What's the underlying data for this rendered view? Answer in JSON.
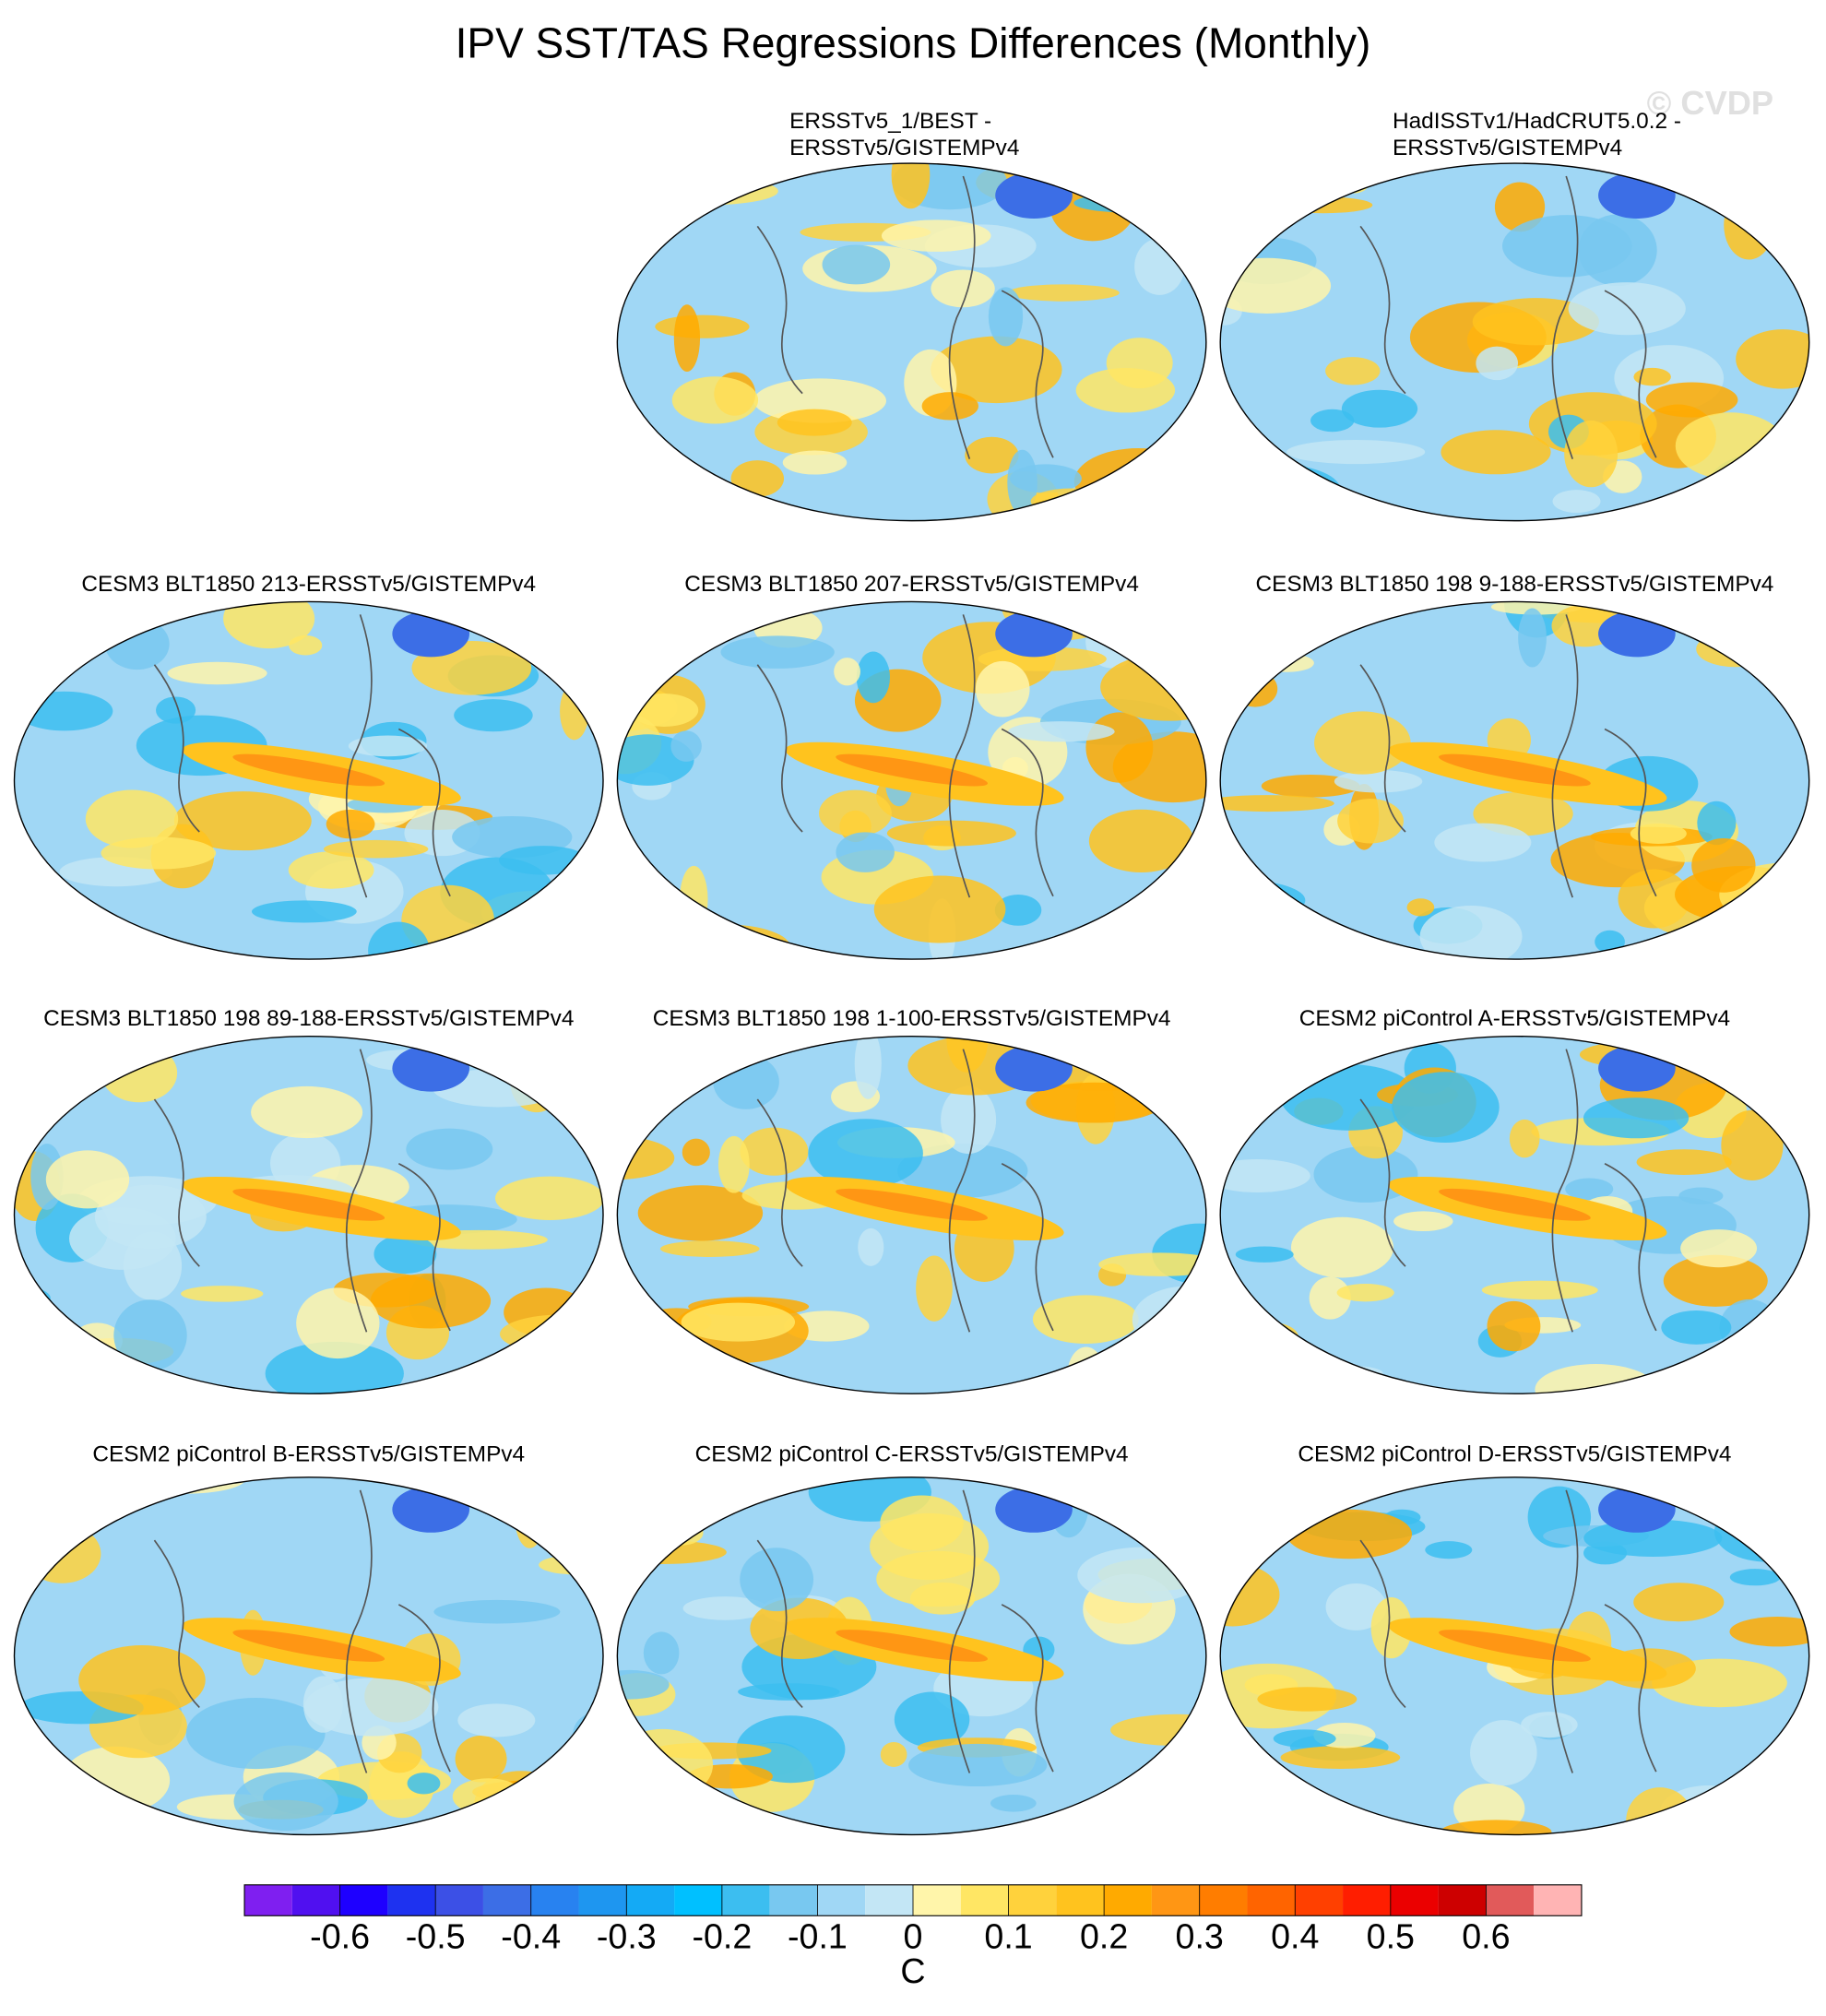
{
  "chart_data": {
    "type": "map-panels",
    "title": "IPV SST/TAS Regressions Differences (Monthly)",
    "watermark": "© CVDP",
    "panels": [
      {
        "title": [
          "ERSSTv5_1/BEST -",
          "ERSSTv5/GISTEMPv4"
        ]
      },
      {
        "title": [
          "HadISSTv1/HadCRUT5.0.2 -",
          "ERSSTv5/GISTEMPv4"
        ]
      },
      {
        "title": [
          "CESM3 BLT1850 213-ERSSTv5/GISTEMPv4"
        ]
      },
      {
        "title": [
          "CESM3 BLT1850 207-ERSSTv5/GISTEMPv4"
        ]
      },
      {
        "title": [
          "CESM3 BLT1850 198 9-188-ERSSTv5/GISTEMPv4"
        ]
      },
      {
        "title": [
          "CESM3 BLT1850 198 89-188-ERSSTv5/GISTEMPv4"
        ]
      },
      {
        "title": [
          "CESM3 BLT1850 198 1-100-ERSSTv5/GISTEMPv4"
        ]
      },
      {
        "title": [
          "CESM2 piControl A-ERSSTv5/GISTEMPv4"
        ]
      },
      {
        "title": [
          "CESM2 piControl B-ERSSTv5/GISTEMPv4"
        ]
      },
      {
        "title": [
          "CESM2 piControl C-ERSSTv5/GISTEMPv4"
        ]
      },
      {
        "title": [
          "CESM2 piControl D-ERSSTv5/GISTEMPv4"
        ]
      }
    ],
    "colorbar": {
      "label": "C",
      "lim": [
        -0.7,
        0.7
      ],
      "ticks": [
        -0.6,
        -0.5,
        -0.4,
        -0.3,
        -0.2,
        -0.1,
        0,
        0.1,
        0.2,
        0.3,
        0.4,
        0.5,
        0.6
      ],
      "colors": [
        "#7f1ff0",
        "#5010f0",
        "#1e00ff",
        "#1e32f0",
        "#3c50e6",
        "#3c6ee6",
        "#2882f0",
        "#1e96f0",
        "#14aaf5",
        "#00c0ff",
        "#3cbef0",
        "#78c8f0",
        "#a0d7f5",
        "#c3e6f5",
        "#fff5aa",
        "#ffe664",
        "#ffd23c",
        "#ffc31e",
        "#ffaa00",
        "#ff9614",
        "#ff7d00",
        "#ff6400",
        "#ff4000",
        "#ff1e00",
        "#eb0000",
        "#cd0000",
        "#e15a5a",
        "#ffb4b4"
      ]
    }
  }
}
